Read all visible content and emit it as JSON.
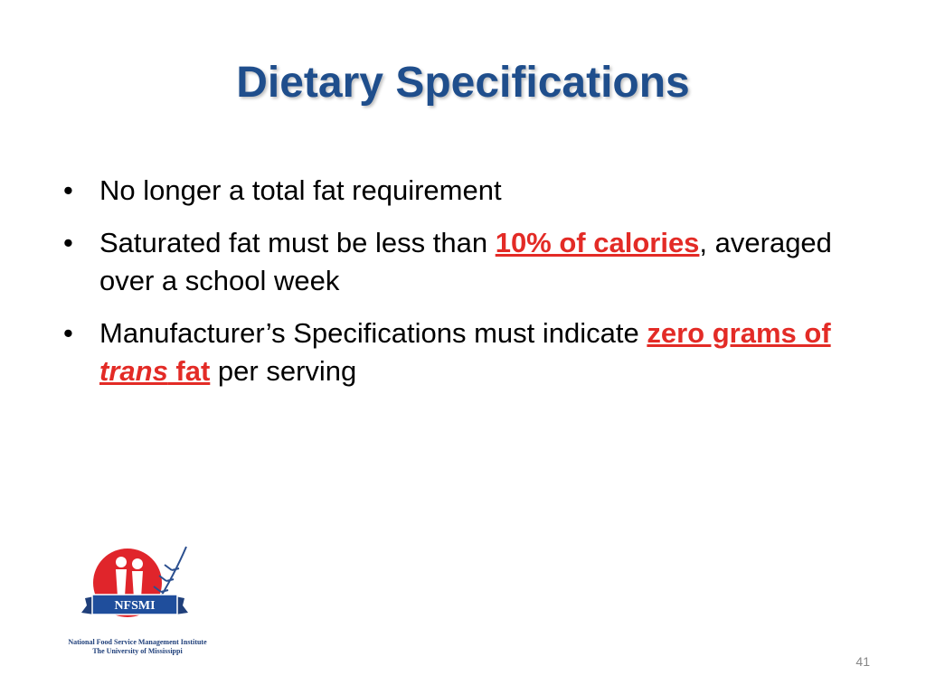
{
  "slide": {
    "title": "Dietary Specifications",
    "bullets": [
      {
        "runs": [
          {
            "text": "No longer a total fat requirement"
          }
        ]
      },
      {
        "runs": [
          {
            "text": "Saturated fat must be less than "
          },
          {
            "text": "10% of calories",
            "highlight": true
          },
          {
            "text": ", averaged over a school week"
          }
        ]
      },
      {
        "runs": [
          {
            "text": "Manufacturer’s Specifications must indicate "
          },
          {
            "text": "zero grams of ",
            "highlight": true
          },
          {
            "text": "trans",
            "highlight": true,
            "italic": true
          },
          {
            "text": " fat",
            "highlight": true
          },
          {
            "text": " per serving"
          }
        ]
      }
    ],
    "logo": {
      "badge": "NFSMI",
      "caption_lines": [
        "National Food Service Management Institute",
        "The University of Mississippi"
      ]
    },
    "page_number": "41"
  }
}
